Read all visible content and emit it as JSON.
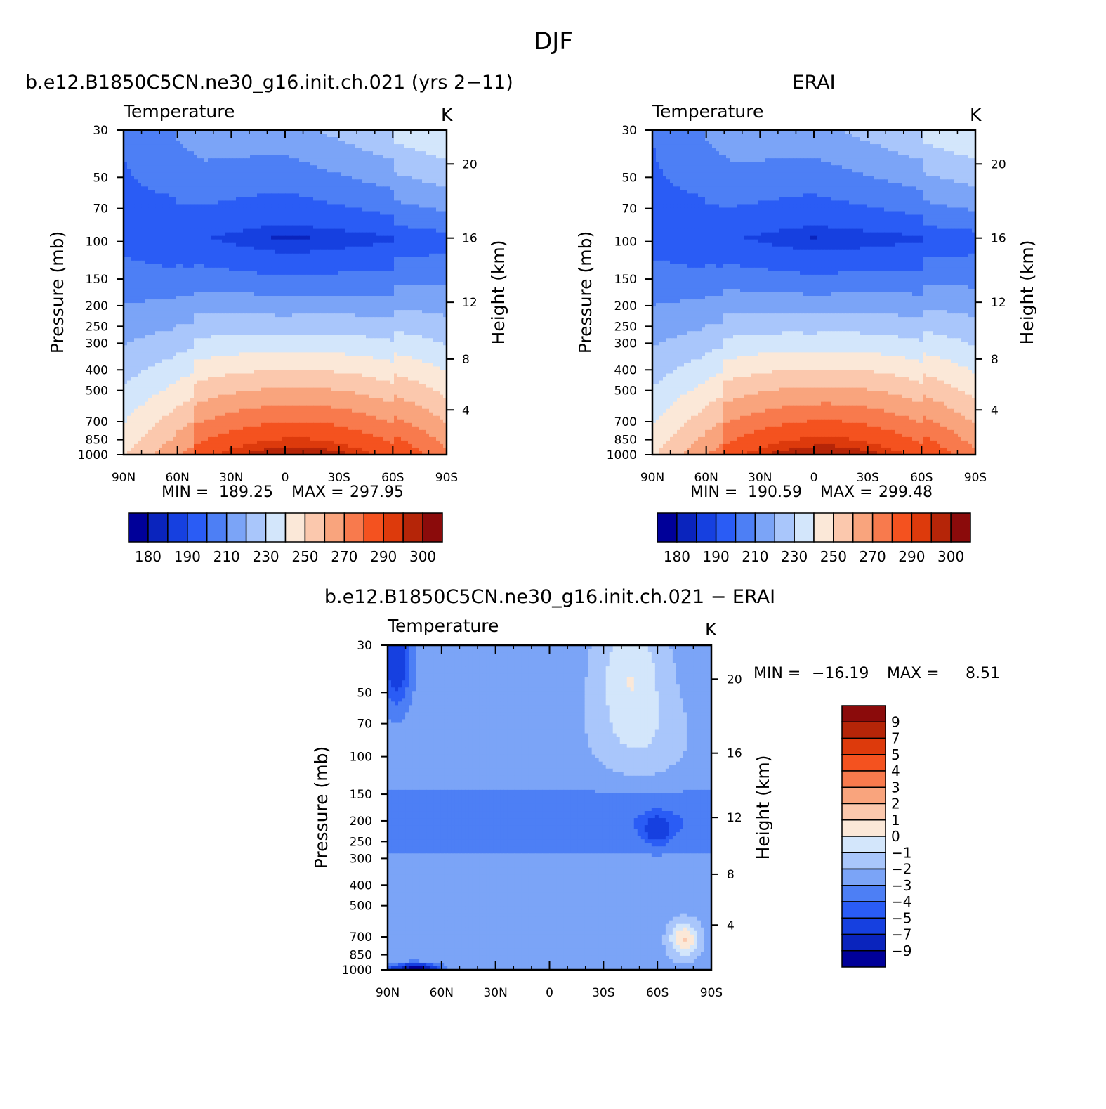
{
  "figure": {
    "title": "DJF",
    "colors": {
      "abs_scale": [
        "#000099",
        "#0a24bd",
        "#1640e0",
        "#2a5cf5",
        "#4d7ff5",
        "#7ba4f7",
        "#a9c6fb",
        "#d3e6fb",
        "#fbe8d8",
        "#fbc8ad",
        "#f9a47d",
        "#f87a4d",
        "#f4521f",
        "#dd3a0c",
        "#b52508",
        "#8b0b0b"
      ],
      "diff_scale": [
        "#000099",
        "#0a24bd",
        "#1640e0",
        "#2a5cf5",
        "#4d7ff5",
        "#7ba4f7",
        "#a9c6fb",
        "#d3e6fb",
        "#fbe8d8",
        "#fbc8ad",
        "#f9a47d",
        "#f87a4d",
        "#f4521f",
        "#dd3a0c",
        "#b52508",
        "#8b0b0b"
      ]
    }
  },
  "chart_data": [
    {
      "type": "heatmap",
      "title": "b.e12.B1850C5CN.ne30_g16.init.ch.021 (yrs 2−11)",
      "subtitle": "Temperature",
      "units": "K",
      "xlabel": "",
      "ylabel": "Pressure (mb)",
      "y2label": "Height (km)",
      "x_ticks": [
        "90N",
        "60N",
        "30N",
        "0",
        "30S",
        "60S",
        "90S"
      ],
      "y_ticks": [
        30,
        50,
        70,
        100,
        150,
        200,
        250,
        300,
        400,
        500,
        700,
        850,
        1000
      ],
      "y2_ticks": [
        4,
        8,
        12,
        16,
        20
      ],
      "y_scale": "log",
      "min_label": "MIN =",
      "max_label": "MAX =",
      "min": "189.25",
      "max": "297.95",
      "colorbar_labels": [
        "180",
        "190",
        "210",
        "230",
        "250",
        "270",
        "290",
        "300"
      ]
    },
    {
      "type": "heatmap",
      "title": "ERAI",
      "subtitle": "Temperature",
      "units": "K",
      "xlabel": "",
      "ylabel": "Pressure (mb)",
      "y2label": "Height (km)",
      "x_ticks": [
        "90N",
        "60N",
        "30N",
        "0",
        "30S",
        "60S",
        "90S"
      ],
      "y_ticks": [
        30,
        50,
        70,
        100,
        150,
        200,
        250,
        300,
        400,
        500,
        700,
        850,
        1000
      ],
      "y2_ticks": [
        4,
        8,
        12,
        16,
        20
      ],
      "y_scale": "log",
      "min_label": "MIN =",
      "max_label": "MAX =",
      "min": "190.59",
      "max": "299.48",
      "colorbar_labels": [
        "180",
        "190",
        "210",
        "230",
        "250",
        "270",
        "290",
        "300"
      ]
    },
    {
      "type": "heatmap",
      "title": "b.e12.B1850C5CN.ne30_g16.init.ch.021 − ERAI",
      "subtitle": "Temperature",
      "units": "K",
      "xlabel": "",
      "ylabel": "Pressure (mb)",
      "y2label": "Height (km)",
      "x_ticks": [
        "90N",
        "60N",
        "30N",
        "0",
        "30S",
        "60S",
        "90S"
      ],
      "y_ticks": [
        30,
        50,
        70,
        100,
        150,
        200,
        250,
        300,
        400,
        500,
        700,
        850,
        1000
      ],
      "y2_ticks": [
        4,
        8,
        12,
        16,
        20
      ],
      "y_scale": "log",
      "min_label": "MIN =",
      "max_label": "MAX =",
      "min": "−16.19",
      "max": "8.51",
      "colorbar_labels": [
        "9",
        "7",
        "5",
        "4",
        "3",
        "2",
        "1",
        "0",
        "−1",
        "−2",
        "−3",
        "−4",
        "−5",
        "−7",
        "−9"
      ]
    }
  ]
}
